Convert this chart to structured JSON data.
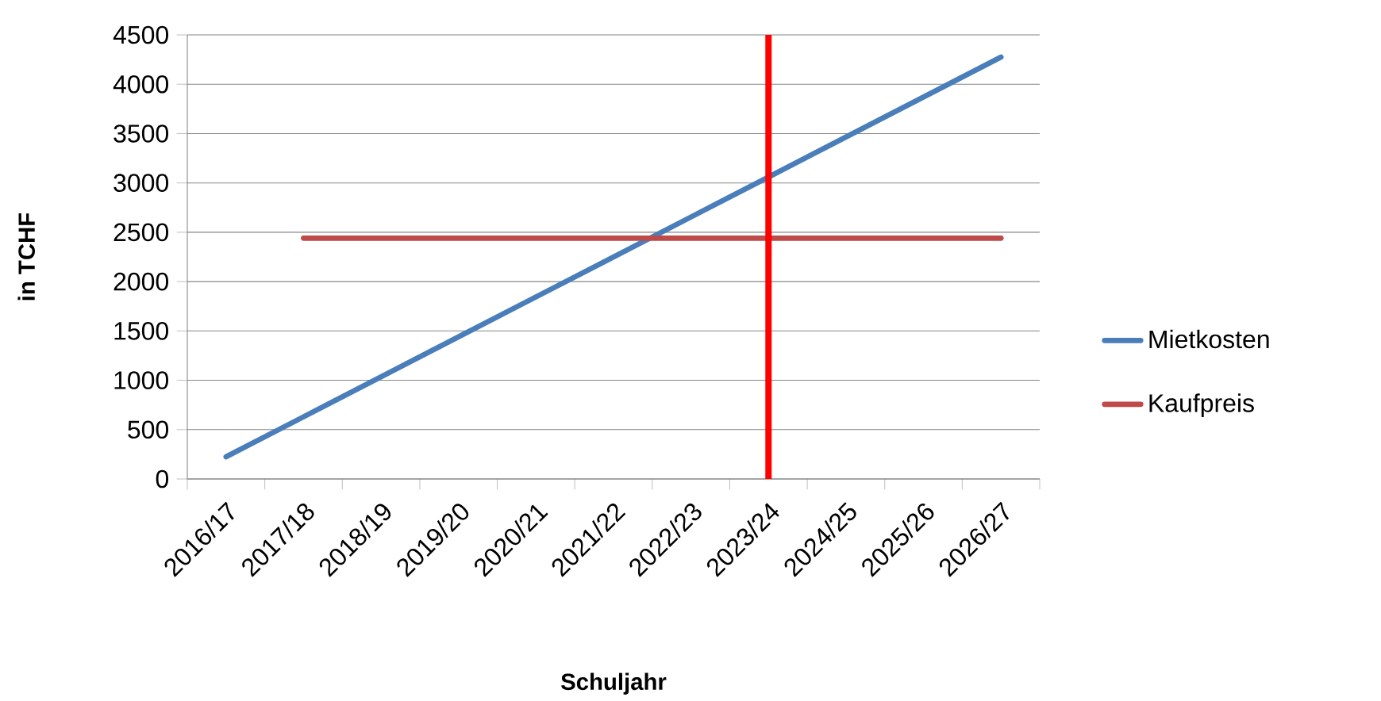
{
  "chart_data": {
    "type": "line",
    "xlabel": "Schuljahr",
    "ylabel": "in TCHF",
    "categories": [
      "2016/17",
      "2017/18",
      "2018/19",
      "2019/20",
      "2020/21",
      "2021/22",
      "2022/23",
      "2023/24",
      "2024/25",
      "2025/26",
      "2026/27"
    ],
    "series": [
      {
        "name": "Mietkosten",
        "color": "#4a7ebb",
        "values": [
          225,
          630,
          1035,
          1440,
          1845,
          2250,
          2655,
          3060,
          3465,
          3870,
          4275
        ]
      },
      {
        "name": "Kaufpreis",
        "color": "#be4b48",
        "values": [
          null,
          2440,
          2440,
          2440,
          2440,
          2440,
          2440,
          2440,
          2440,
          2440,
          2440
        ]
      }
    ],
    "ylim": [
      0,
      4500
    ],
    "yticks": [
      0,
      500,
      1000,
      1500,
      2000,
      2500,
      3000,
      3500,
      4000,
      4500
    ],
    "ref_lines": [
      {
        "axis": "x",
        "value": "2023/24",
        "color": "#ff0000"
      }
    ],
    "grid": "y",
    "legend": "right",
    "marker": "none",
    "line_style": "solid"
  }
}
